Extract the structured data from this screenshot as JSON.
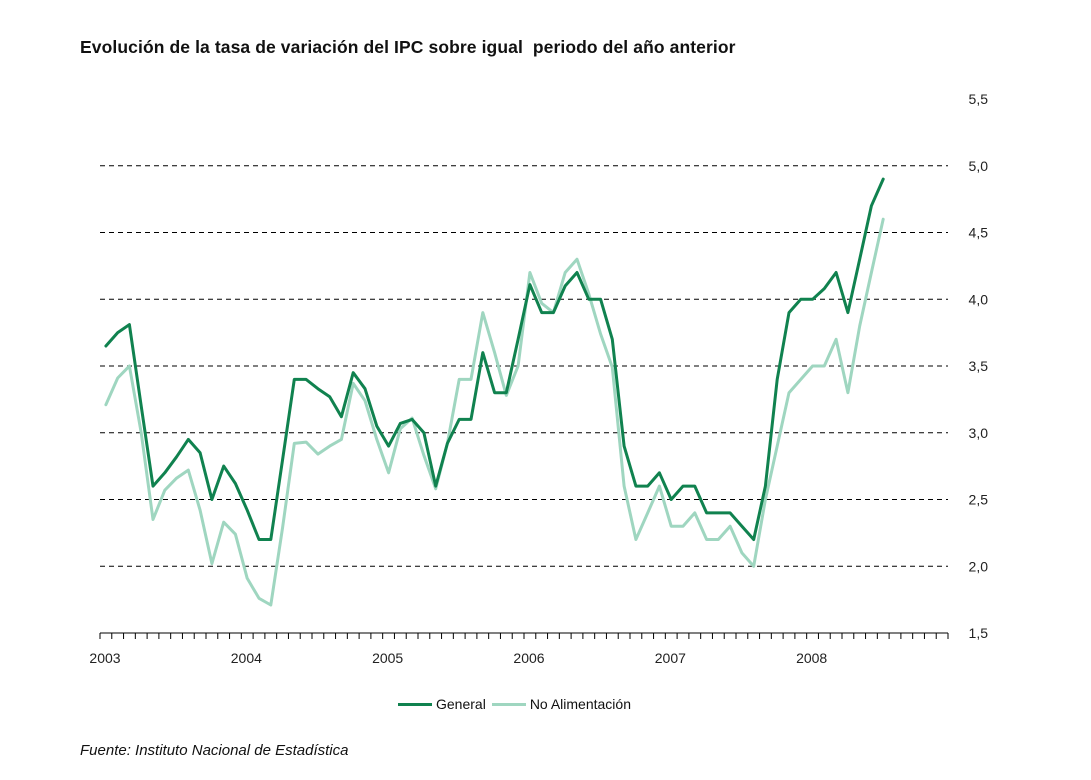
{
  "title": "Evolución de la tasa de variación del IPC sobre igual  periodo del año anterior",
  "source": "Fuente: Instituto Nacional de Estadística",
  "colors": {
    "general": "#10824f",
    "no_alimentacion": "#9fd6c0",
    "grid": "#000000",
    "axis": "#000000"
  },
  "chart_data": {
    "type": "line",
    "title": "Evolución de la tasa de variación del IPC sobre igual  periodo del año anterior",
    "xlabel": "",
    "ylabel": "",
    "ylim": [
      1.5,
      5.5
    ],
    "yticks": [
      "1,5",
      "2,0",
      "2,5",
      "3,0",
      "3,5",
      "4,0",
      "4,5",
      "5,0",
      "5,5"
    ],
    "ytick_values": [
      1.5,
      2.0,
      2.5,
      3.0,
      3.5,
      4.0,
      4.5,
      5.0,
      5.5
    ],
    "grid": "horizontal dashed",
    "y_axis_position": "right",
    "legend_position": "bottom-center",
    "x_labels": [
      "2003",
      "2004",
      "2005",
      "2006",
      "2007",
      "2008"
    ],
    "x_months_total": 72,
    "series": [
      {
        "name": "General",
        "values": [
          3.65,
          3.75,
          3.81,
          3.2,
          2.6,
          2.7,
          2.82,
          2.95,
          2.85,
          2.5,
          2.75,
          2.62,
          2.42,
          2.2,
          2.2,
          2.8,
          3.4,
          3.4,
          3.33,
          3.27,
          3.12,
          3.45,
          3.33,
          3.05,
          2.9,
          3.07,
          3.1,
          3.0,
          2.6,
          2.92,
          3.1,
          3.1,
          3.6,
          3.3,
          3.3,
          3.7,
          4.11,
          3.9,
          3.9,
          4.1,
          4.2,
          4.0,
          4.0,
          3.7,
          2.9,
          2.6,
          2.6,
          2.7,
          2.5,
          2.6,
          2.6,
          2.4,
          2.4,
          2.4,
          2.3,
          2.2,
          2.6,
          3.4,
          3.9,
          4.0,
          4.0,
          4.08,
          4.2,
          3.9,
          4.3,
          4.7,
          4.9
        ]
      },
      {
        "name": "No Alimentación",
        "values": [
          3.21,
          3.41,
          3.5,
          3.0,
          2.35,
          2.57,
          2.66,
          2.72,
          2.42,
          2.02,
          2.33,
          2.24,
          1.91,
          1.76,
          1.71,
          2.29,
          2.92,
          2.93,
          2.84,
          2.9,
          2.95,
          3.37,
          3.24,
          2.95,
          2.7,
          3.03,
          3.11,
          2.83,
          2.58,
          2.92,
          3.4,
          3.4,
          3.9,
          3.6,
          3.28,
          3.5,
          4.2,
          3.97,
          3.9,
          4.2,
          4.3,
          4.04,
          3.74,
          3.49,
          2.6,
          2.2,
          2.4,
          2.6,
          2.3,
          2.3,
          2.4,
          2.2,
          2.2,
          2.3,
          2.1,
          2.0,
          2.5,
          2.9,
          3.3,
          3.4,
          3.5,
          3.5,
          3.7,
          3.3,
          3.8,
          4.2,
          4.6
        ]
      }
    ]
  },
  "legend": {
    "general_label": "General",
    "no_alimentacion_label": "No Alimentación"
  }
}
